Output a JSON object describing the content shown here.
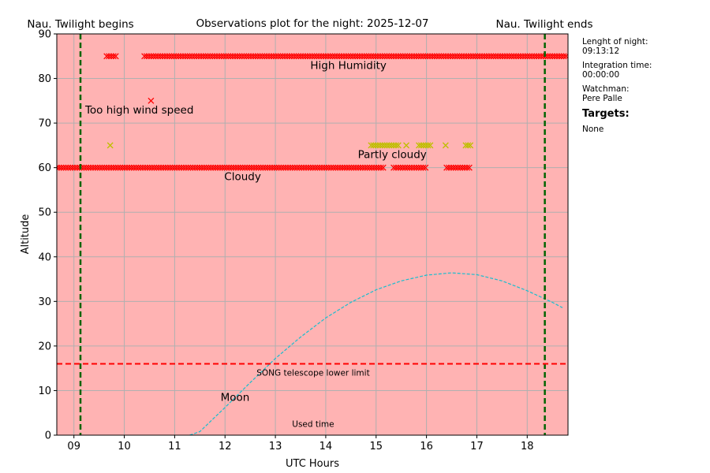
{
  "chart_data": {
    "type": "scatter",
    "title": "Observations plot for the night: 2025-12-07",
    "xlabel": "UTC Hours",
    "ylabel": "Altitude",
    "xlim": [
      8.66,
      18.81
    ],
    "ylim": [
      0,
      90
    ],
    "grid": true,
    "background_color": "#ffb3b3",
    "x_ticks": [
      9,
      10,
      11,
      12,
      13,
      14,
      15,
      16,
      17,
      18
    ],
    "x_tick_labels": [
      "09",
      "10",
      "11",
      "12",
      "13",
      "14",
      "15",
      "16",
      "17",
      "18"
    ],
    "y_ticks": [
      0,
      10,
      20,
      30,
      40,
      50,
      60,
      70,
      80,
      90
    ],
    "y_tick_labels": [
      "0",
      "10",
      "20",
      "30",
      "40",
      "50",
      "60",
      "70",
      "80",
      "90"
    ],
    "twilight_lines": [
      {
        "label": "Nau. Twilight begins",
        "x": 9.13,
        "color": "#006400"
      },
      {
        "label": "Nau. Twilight ends",
        "x": 18.35,
        "color": "#006400"
      }
    ],
    "limit_line": {
      "label": "SONG telescope lower limit",
      "y": 16,
      "color": "#ff0000"
    },
    "weather_series": [
      {
        "label": "High Humidity",
        "y": 85,
        "color": "#ff0000",
        "segments": [
          [
            9.65,
            9.83
          ],
          [
            10.4,
            18.81
          ]
        ],
        "label_at": [
          14.45,
          83
        ]
      },
      {
        "label": "Too high wind speed",
        "y": 75,
        "color": "#ff0000",
        "segments": [
          [
            10.53,
            10.53
          ]
        ],
        "label_at": [
          10.3,
          73
        ]
      },
      {
        "label": "Cloudy",
        "y": 60,
        "color": "#ff0000",
        "segments": [
          [
            8.66,
            15.15
          ],
          [
            15.35,
            16.0
          ],
          [
            16.4,
            16.85
          ]
        ],
        "label_at": [
          12.35,
          58
        ]
      },
      {
        "label": "Partly cloudy",
        "y": 65,
        "color": "#bfbf00",
        "segments": [
          [
            9.72,
            9.72
          ],
          [
            14.9,
            15.45
          ],
          [
            15.6,
            15.6
          ],
          [
            15.85,
            16.08
          ],
          [
            16.38,
            16.42
          ],
          [
            16.78,
            16.9
          ]
        ],
        "label_at": [
          15.32,
          63
        ]
      }
    ],
    "moon": {
      "label": "Moon",
      "color": "#17becf",
      "x": [
        11.3,
        11.5,
        12.0,
        12.5,
        13.0,
        13.5,
        14.0,
        14.5,
        15.0,
        15.5,
        16.0,
        16.5,
        17.0,
        17.5,
        18.0,
        18.5,
        18.7
      ],
      "y": [
        0,
        0.8,
        6.2,
        11.8,
        17.2,
        22.0,
        26.3,
        29.8,
        32.6,
        34.6,
        35.9,
        36.4,
        36.0,
        34.6,
        32.4,
        29.8,
        28.6
      ],
      "label_at": [
        12.2,
        8.5
      ]
    },
    "used_time": {
      "label": "Used time",
      "label_at": [
        13.75,
        2.5
      ]
    }
  },
  "side_panel": {
    "night_length_label": "Lenght of night:",
    "night_length_value": "09:13:12",
    "integration_label": "Integration time:",
    "integration_value": "00:00:00",
    "watchman_label": "Watchman:",
    "watchman_value": "Pere Palle",
    "targets_heading": "Targets:",
    "targets_value": "None"
  }
}
